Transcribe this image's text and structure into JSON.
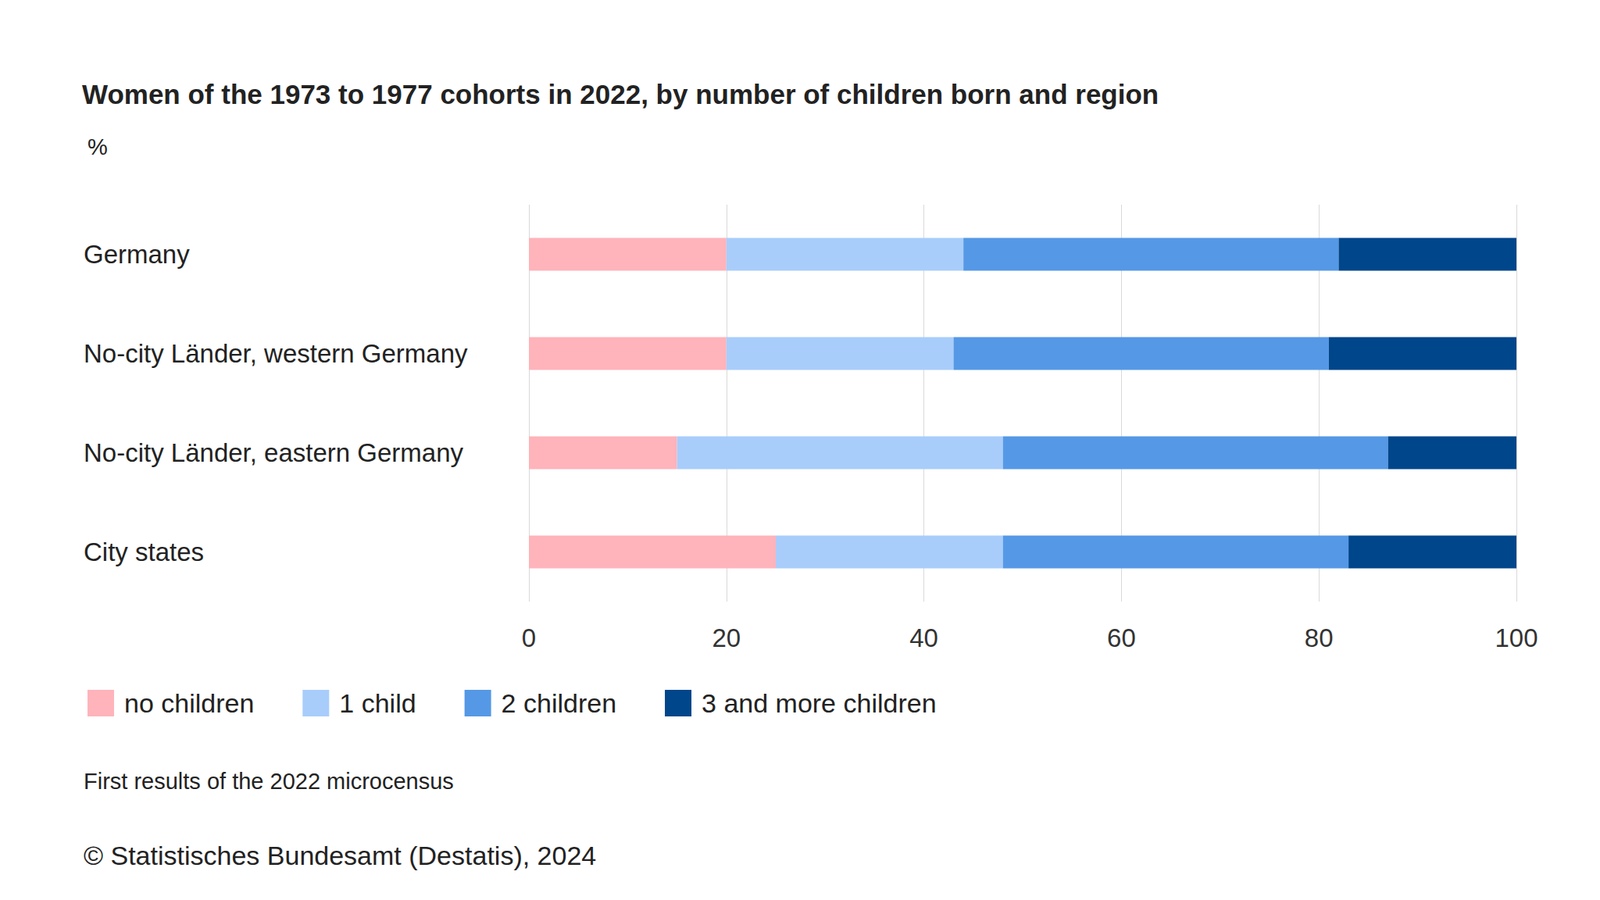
{
  "chart_data": {
    "type": "bar",
    "orientation": "horizontal",
    "stacked": true,
    "title": "Women of the 1973 to 1977 cohorts in 2022, by number of children born and region",
    "subtitle": "%",
    "categories": [
      "Germany",
      "No-city Länder, western Germany",
      "No-city Länder, eastern Germany",
      "City states"
    ],
    "series": [
      {
        "name": "no children",
        "color": "#ffb3ba",
        "values": [
          20,
          20,
          15,
          25
        ]
      },
      {
        "name": "1 child",
        "color": "#a8cdfb",
        "values": [
          24,
          23,
          33,
          23
        ]
      },
      {
        "name": "2 children",
        "color": "#5598e6",
        "values": [
          38,
          38,
          39,
          35
        ]
      },
      {
        "name": "3 and more children",
        "color": "#00468b",
        "values": [
          18,
          19,
          13,
          17
        ]
      }
    ],
    "xlim": [
      0,
      100
    ],
    "xticks": [
      0,
      20,
      40,
      60,
      80,
      100
    ],
    "grid": true,
    "legend": "bottom",
    "annotations": [
      "First results of the 2022 microcensus",
      "© Statistisches Bundesamt (Destatis), 2024"
    ]
  }
}
